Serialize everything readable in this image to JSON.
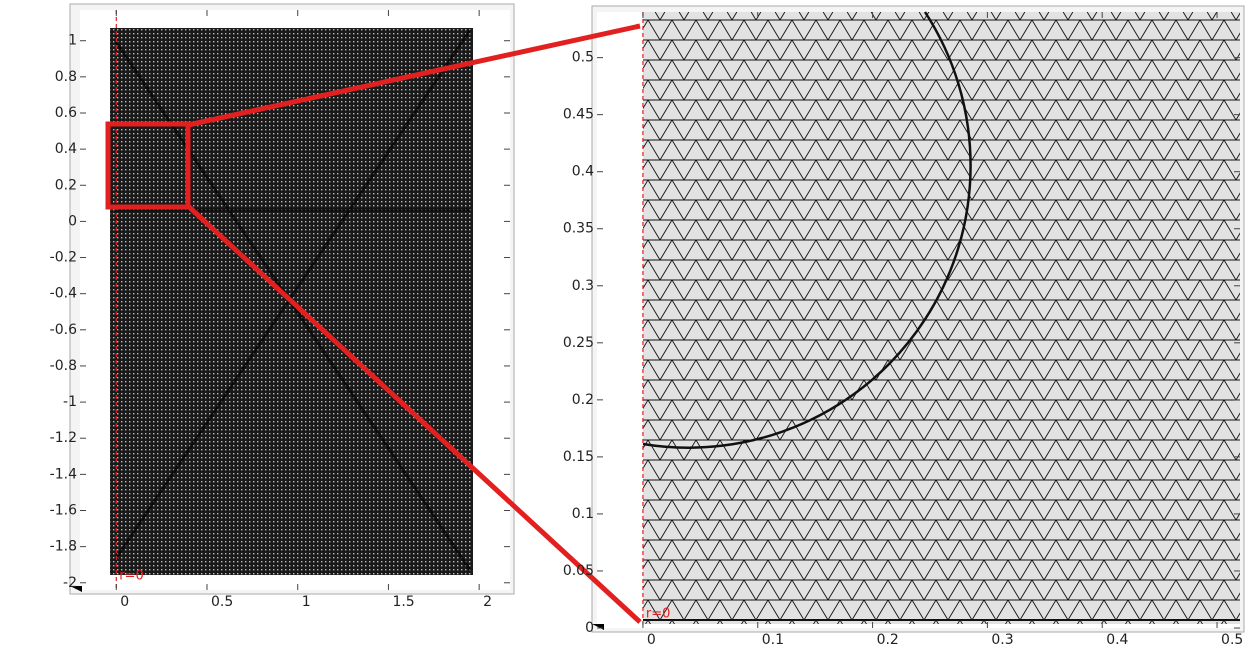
{
  "chart_data": [
    {
      "type": "mesh",
      "annotation": "r=0",
      "xlim": [
        -0.2,
        2.17
      ],
      "ylim": [
        -2.04,
        1.17
      ],
      "xticks": [
        0,
        0.5,
        1,
        1.5,
        2
      ],
      "yticks": [
        1,
        0.8,
        0.6,
        0.4,
        0.2,
        0,
        -0.2,
        -0.4,
        -0.6,
        -0.8,
        -1,
        -1.2,
        -1.4,
        -1.6,
        -1.8,
        -2
      ]
    },
    {
      "type": "mesh",
      "annotation": "r=0",
      "xlim": [
        -0.04,
        0.52
      ],
      "ylim": [
        0,
        0.54
      ],
      "xticks": [
        0,
        0.1,
        0.2,
        0.3,
        0.4,
        0.5
      ],
      "yticks": [
        0.5,
        0.45,
        0.4,
        0.35,
        0.3,
        0.25,
        0.2,
        0.15,
        0.1,
        0.05,
        0
      ]
    }
  ]
}
